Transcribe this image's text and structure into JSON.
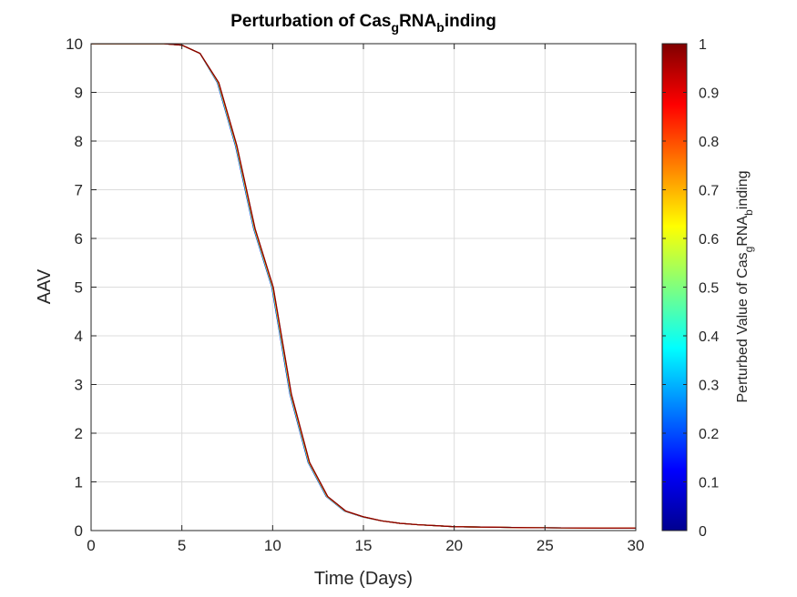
{
  "chart_data": {
    "type": "line",
    "title_parts": [
      "Perturbation of Cas",
      "g",
      "RNA",
      "b",
      "inding"
    ],
    "xlabel": "Time (Days)",
    "ylabel": "AAV",
    "xlim": [
      0,
      30
    ],
    "ylim": [
      0,
      10
    ],
    "xticks": [
      0,
      5,
      10,
      15,
      20,
      25,
      30
    ],
    "yticks": [
      0,
      1,
      2,
      3,
      4,
      5,
      6,
      7,
      8,
      9,
      10
    ],
    "grid": true,
    "series_note": "many overlapping curves colored by perturbed value (0 to 1, jet colormap)",
    "x": [
      0,
      1,
      2,
      3,
      4,
      5,
      6,
      7,
      8,
      9,
      10,
      11,
      12,
      13,
      14,
      15,
      16,
      17,
      18,
      19,
      20,
      22,
      24,
      26,
      28,
      30
    ],
    "y": [
      10.0,
      10.0,
      10.0,
      10.0,
      10.0,
      9.97,
      9.8,
      9.2,
      7.9,
      6.2,
      5.0,
      2.8,
      1.4,
      0.7,
      0.4,
      0.28,
      0.2,
      0.15,
      0.12,
      0.1,
      0.08,
      0.07,
      0.06,
      0.055,
      0.05,
      0.05
    ],
    "colorbar": {
      "colormap": "jet",
      "range": [
        0,
        1
      ],
      "ticks": [
        0,
        0.1,
        0.2,
        0.3,
        0.4,
        0.5,
        0.6,
        0.7,
        0.8,
        0.9,
        1
      ],
      "tick_labels": [
        "0",
        "0.1",
        "0.2",
        "0.3",
        "0.4",
        "0.5",
        "0.6",
        "0.7",
        "0.8",
        "0.9",
        "1"
      ],
      "label_parts": [
        "Perturbed Value of Cas",
        "g",
        "RNA",
        "b",
        "inding"
      ]
    }
  }
}
